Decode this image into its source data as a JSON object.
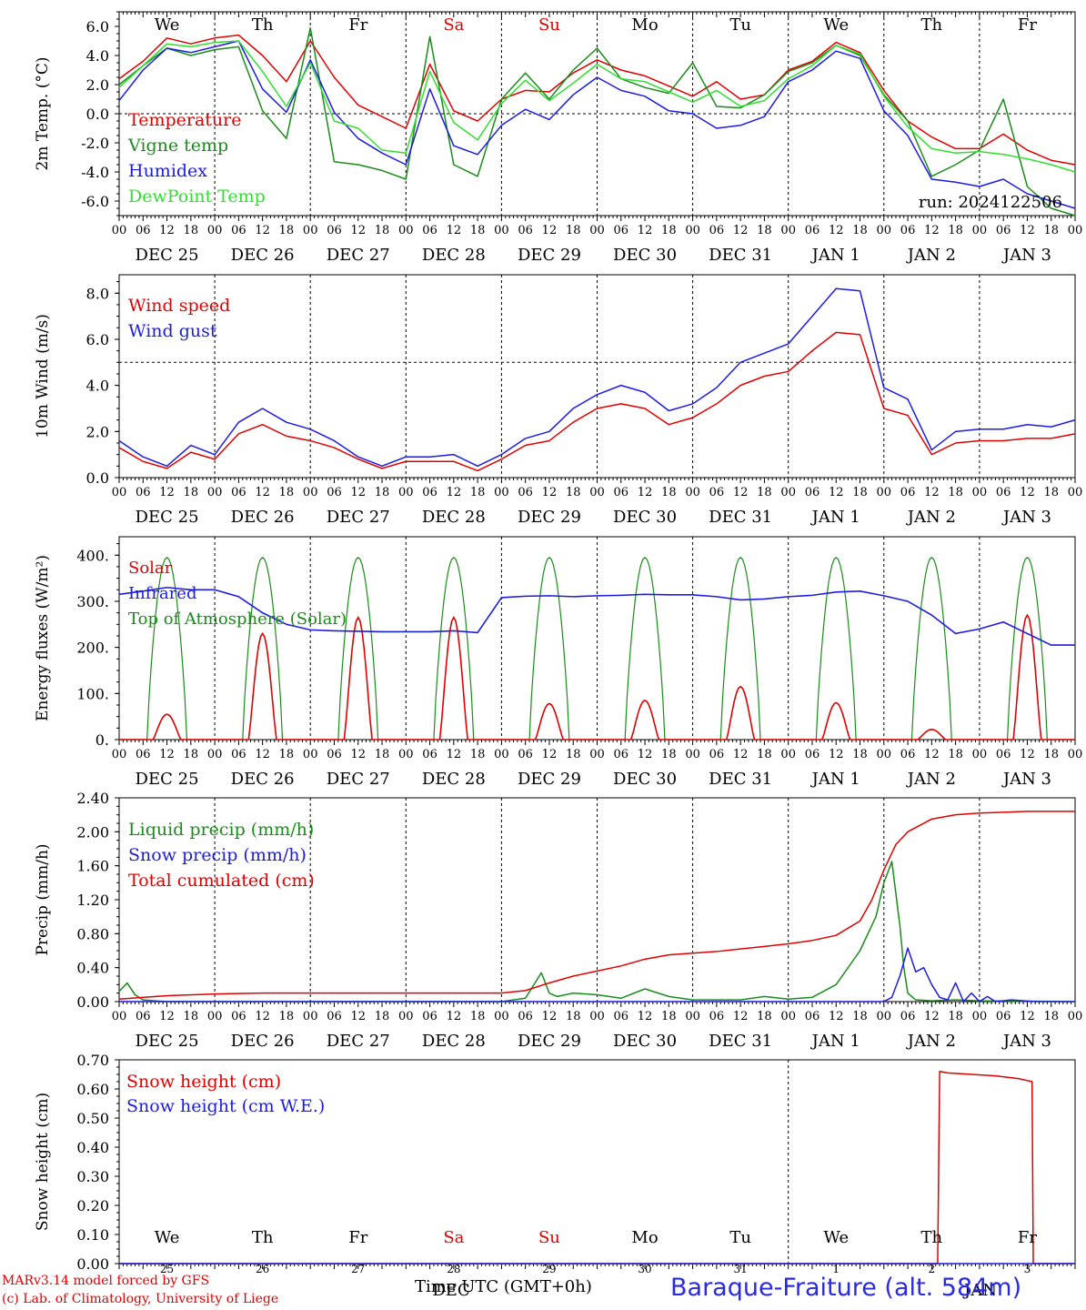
{
  "meta": {
    "run_label": "run: 2024122506",
    "credit_line1": "MARv3.14 model forced by GFS",
    "credit_line2": "(c) Lab. of Climatology, University of Liege",
    "xlabel": "Time UTC (GMT+0h)",
    "station": "Baraque-Fraiture (alt. 584m)",
    "month_label": "DEC",
    "month_label2": "JAN"
  },
  "colors": {
    "red": "#e00000",
    "green": "#1a8c1a",
    "blue": "#1c1ce0",
    "lightgreen": "#2fe02f"
  },
  "days": {
    "weekdays": [
      "We",
      "Th",
      "Fr",
      "Sa",
      "Su",
      "Mo",
      "Tu",
      "We",
      "Th",
      "Fr"
    ],
    "weekend_flags": [
      false,
      false,
      false,
      true,
      true,
      false,
      false,
      false,
      false,
      false
    ],
    "dates": [
      "DEC 25",
      "DEC 26",
      "DEC 27",
      "DEC 28",
      "DEC 29",
      "DEC 30",
      "DEC 31",
      "JAN 1",
      "JAN 2",
      "JAN 3"
    ],
    "day_numbers": [
      "25",
      "26",
      "27",
      "28",
      "29",
      "30",
      "31",
      "1",
      "2",
      "3"
    ],
    "hour_ticks": [
      "00",
      "06",
      "12",
      "18"
    ]
  },
  "chart_data": [
    {
      "type": "line",
      "ylabel": "2m Temp. (°C)",
      "ylim": [
        -7,
        7
      ],
      "yticks": [
        "6.0",
        "4.0",
        "2.0",
        "0.0",
        "-2.0",
        "-4.0",
        "-6.0"
      ],
      "ytick_values": [
        6,
        4,
        2,
        0,
        -2,
        -4,
        -6
      ],
      "reference_line": 0,
      "x_hours": [
        0,
        6,
        12,
        18,
        24,
        30,
        36,
        42,
        48,
        54,
        60,
        66,
        72,
        78,
        84,
        90,
        96,
        102,
        108,
        114,
        120,
        126,
        132,
        138,
        144,
        150,
        156,
        162,
        168,
        174,
        180,
        186,
        192,
        198,
        204,
        210,
        216,
        222,
        228,
        234,
        240
      ],
      "series": [
        {
          "name": "Temperature",
          "color_key": "red",
          "values": [
            2.4,
            3.6,
            5.2,
            4.8,
            5.2,
            5.4,
            4.0,
            2.2,
            5.0,
            2.5,
            0.6,
            -0.2,
            -1.0,
            3.4,
            0.2,
            -0.5,
            1.0,
            1.6,
            1.5,
            2.8,
            3.7,
            3.0,
            2.6,
            1.9,
            1.2,
            2.2,
            1.0,
            1.3,
            3.0,
            3.6,
            4.9,
            4.2,
            1.6,
            -0.5,
            -1.6,
            -2.4,
            -2.4,
            -1.4,
            -2.5,
            -3.2,
            -3.5
          ]
        },
        {
          "name": "Vigne temp",
          "color_key": "green",
          "values": [
            2.0,
            3.3,
            4.5,
            4.0,
            4.4,
            4.6,
            0.2,
            -1.7,
            5.9,
            -3.3,
            -3.5,
            -3.9,
            -4.5,
            5.3,
            -3.5,
            -4.3,
            1.0,
            2.8,
            1.0,
            3.0,
            4.5,
            2.4,
            1.8,
            1.4,
            3.5,
            0.5,
            0.4,
            1.3,
            2.9,
            3.5,
            4.7,
            4.0,
            1.3,
            -0.5,
            -4.3,
            -3.5,
            -2.5,
            1.0,
            -5.0,
            -6.5,
            -7.0
          ]
        },
        {
          "name": "Humidex",
          "color_key": "blue",
          "values": [
            0.9,
            3.0,
            4.5,
            4.2,
            4.6,
            5.0,
            1.7,
            0.1,
            3.7,
            0.1,
            -1.7,
            -2.7,
            -3.5,
            1.7,
            -2.2,
            -2.8,
            -0.8,
            0.3,
            -0.4,
            1.3,
            2.5,
            1.6,
            1.2,
            0.2,
            0.0,
            -1.0,
            -0.8,
            -0.2,
            2.2,
            3.0,
            4.3,
            3.8,
            0.2,
            -1.5,
            -4.5,
            -4.7,
            -5.0,
            -4.5,
            -5.5,
            -6.0,
            -6.5
          ]
        },
        {
          "name": "DewPoint Temp",
          "color_key": "lightgreen",
          "values": [
            1.8,
            3.3,
            4.8,
            4.6,
            4.9,
            5.0,
            2.9,
            0.5,
            3.5,
            -0.5,
            -1.0,
            -2.5,
            -2.7,
            2.9,
            -0.6,
            -1.8,
            0.7,
            2.3,
            0.9,
            2.1,
            3.4,
            2.4,
            2.2,
            1.5,
            0.8,
            1.6,
            0.5,
            0.9,
            2.4,
            3.3,
            4.7,
            4.1,
            1.2,
            -0.9,
            -2.4,
            -2.7,
            -2.6,
            -2.8,
            -3.1,
            -3.5,
            -4.0
          ]
        }
      ]
    },
    {
      "type": "line",
      "ylabel": "10m Wind (m/s)",
      "ylim": [
        0,
        8.8
      ],
      "yticks": [
        "8.0",
        "6.0",
        "4.0",
        "2.0",
        "0.0"
      ],
      "ytick_values": [
        8,
        6,
        4,
        2,
        0
      ],
      "reference_line": 5,
      "x_hours": [
        0,
        6,
        12,
        18,
        24,
        30,
        36,
        42,
        48,
        54,
        60,
        66,
        72,
        78,
        84,
        90,
        96,
        102,
        108,
        114,
        120,
        126,
        132,
        138,
        144,
        150,
        156,
        162,
        168,
        174,
        180,
        186,
        192,
        198,
        204,
        210,
        216,
        222,
        228,
        234,
        240
      ],
      "series": [
        {
          "name": "Wind speed",
          "color_key": "red",
          "values": [
            1.3,
            0.7,
            0.4,
            1.1,
            0.8,
            1.9,
            2.3,
            1.8,
            1.6,
            1.3,
            0.8,
            0.4,
            0.7,
            0.7,
            0.7,
            0.3,
            0.8,
            1.4,
            1.6,
            2.4,
            3.0,
            3.2,
            3.0,
            2.3,
            2.6,
            3.2,
            4.0,
            4.4,
            4.6,
            5.5,
            6.3,
            6.2,
            3.0,
            2.7,
            1.0,
            1.5,
            1.6,
            1.6,
            1.7,
            1.7,
            1.9
          ]
        },
        {
          "name": "Wind gust",
          "color_key": "blue",
          "values": [
            1.6,
            0.9,
            0.5,
            1.4,
            1.0,
            2.4,
            3.0,
            2.4,
            2.1,
            1.6,
            0.9,
            0.5,
            0.9,
            0.9,
            1.0,
            0.5,
            1.0,
            1.7,
            2.0,
            3.0,
            3.6,
            4.0,
            3.7,
            2.9,
            3.2,
            3.9,
            5.0,
            5.4,
            5.8,
            7.0,
            8.2,
            8.1,
            3.9,
            3.4,
            1.2,
            2.0,
            2.1,
            2.1,
            2.3,
            2.2,
            2.5
          ]
        }
      ]
    },
    {
      "type": "line",
      "ylabel": "Energy fluxes (W/m²)",
      "ylim": [
        0,
        440
      ],
      "yticks": [
        "400.",
        "300.",
        "200.",
        "100.",
        "0."
      ],
      "ytick_values": [
        400,
        300,
        200,
        100,
        0
      ],
      "top_of_atmosphere_peak": 395,
      "solar_daily_peaks": [
        55,
        230,
        265,
        265,
        78,
        85,
        115,
        80,
        22,
        270
      ],
      "infrared_hours": [
        0,
        6,
        12,
        18,
        24,
        30,
        36,
        42,
        48,
        54,
        60,
        66,
        72,
        78,
        84,
        90,
        96,
        102,
        108,
        114,
        120,
        126,
        132,
        138,
        144,
        150,
        156,
        162,
        168,
        174,
        180,
        186,
        192,
        198,
        204,
        210,
        216,
        222,
        228,
        234,
        240
      ],
      "infrared_values": [
        315,
        322,
        330,
        325,
        325,
        310,
        275,
        250,
        238,
        236,
        235,
        234,
        234,
        234,
        236,
        232,
        308,
        311,
        312,
        310,
        312,
        313,
        315,
        314,
        314,
        310,
        303,
        305,
        310,
        313,
        320,
        322,
        312,
        300,
        270,
        230,
        240,
        255,
        230,
        205,
        205
      ],
      "series_names": [
        "Solar",
        "Infrared",
        "Top of Atmosphere (Solar)"
      ],
      "series_colors": [
        "red",
        "blue",
        "green"
      ]
    },
    {
      "type": "line",
      "ylabel": "Precip (mm/h)",
      "ylim": [
        0,
        2.4
      ],
      "yticks": [
        "2.40",
        "2.00",
        "1.60",
        "1.20",
        "0.80",
        "0.40",
        "0.00"
      ],
      "ytick_values": [
        2.4,
        2.0,
        1.6,
        1.2,
        0.8,
        0.4,
        0.0
      ],
      "series": [
        {
          "name": "Liquid precip (mm/h)",
          "color_key": "green",
          "x_hours": [
            0,
            2,
            4,
            6,
            9,
            12,
            24,
            48,
            72,
            96,
            102,
            106,
            108,
            110,
            114,
            120,
            126,
            132,
            138,
            144,
            150,
            156,
            162,
            168,
            174,
            180,
            186,
            190,
            192,
            194,
            196,
            197,
            198,
            200,
            204,
            210,
            216,
            240
          ],
          "values": [
            0.12,
            0.22,
            0.08,
            0.02,
            0.01,
            0.0,
            0.0,
            0.0,
            0.0,
            0.0,
            0.04,
            0.34,
            0.1,
            0.06,
            0.1,
            0.08,
            0.04,
            0.15,
            0.06,
            0.02,
            0.02,
            0.02,
            0.06,
            0.03,
            0.05,
            0.2,
            0.6,
            1.0,
            1.4,
            1.65,
            0.9,
            0.4,
            0.1,
            0.02,
            0.01,
            0.02,
            0.01,
            0.0
          ]
        },
        {
          "name": "Snow precip (mm/h)",
          "color_key": "blue",
          "x_hours": [
            0,
            192,
            194,
            196,
            198,
            200,
            202,
            204,
            206,
            208,
            210,
            212,
            214,
            216,
            218,
            220,
            224,
            230,
            240
          ],
          "values": [
            0.0,
            0.0,
            0.05,
            0.3,
            0.63,
            0.35,
            0.4,
            0.2,
            0.05,
            0.02,
            0.22,
            0.0,
            0.1,
            0.0,
            0.06,
            0.0,
            0.02,
            0.0,
            0.0
          ]
        },
        {
          "name": "Total cumulated (cm)",
          "color_key": "red",
          "x_hours": [
            0,
            12,
            24,
            36,
            48,
            72,
            96,
            102,
            108,
            114,
            120,
            126,
            132,
            138,
            144,
            150,
            156,
            162,
            168,
            174,
            180,
            186,
            189,
            192,
            195,
            198,
            204,
            210,
            216,
            222,
            228,
            240
          ],
          "values": [
            0.03,
            0.07,
            0.09,
            0.1,
            0.1,
            0.1,
            0.1,
            0.13,
            0.22,
            0.3,
            0.36,
            0.42,
            0.5,
            0.55,
            0.57,
            0.59,
            0.62,
            0.65,
            0.68,
            0.72,
            0.78,
            0.95,
            1.2,
            1.55,
            1.85,
            2.0,
            2.15,
            2.2,
            2.22,
            2.23,
            2.24,
            2.24
          ]
        }
      ]
    },
    {
      "type": "line",
      "ylabel": "Snow height (cm)",
      "ylim": [
        0,
        0.7
      ],
      "yticks": [
        "0.70",
        "0.60",
        "0.50",
        "0.40",
        "0.30",
        "0.20",
        "0.10",
        "0.00"
      ],
      "ytick_values": [
        0.7,
        0.6,
        0.5,
        0.4,
        0.3,
        0.2,
        0.1,
        0.0
      ],
      "series": [
        {
          "name": "Snow height (cm)",
          "color_key": "red",
          "x_hours": [
            0,
            205.5,
            206,
            208,
            214,
            220,
            226,
            229.2,
            229.5,
            240
          ],
          "values": [
            0.0,
            0.0,
            0.66,
            0.655,
            0.65,
            0.645,
            0.635,
            0.625,
            0.0,
            0.0
          ]
        },
        {
          "name": "Snow height (cm W.E.)",
          "color_key": "blue",
          "x_hours": [
            0,
            240
          ],
          "values": [
            0.0,
            0.0
          ]
        }
      ]
    }
  ]
}
